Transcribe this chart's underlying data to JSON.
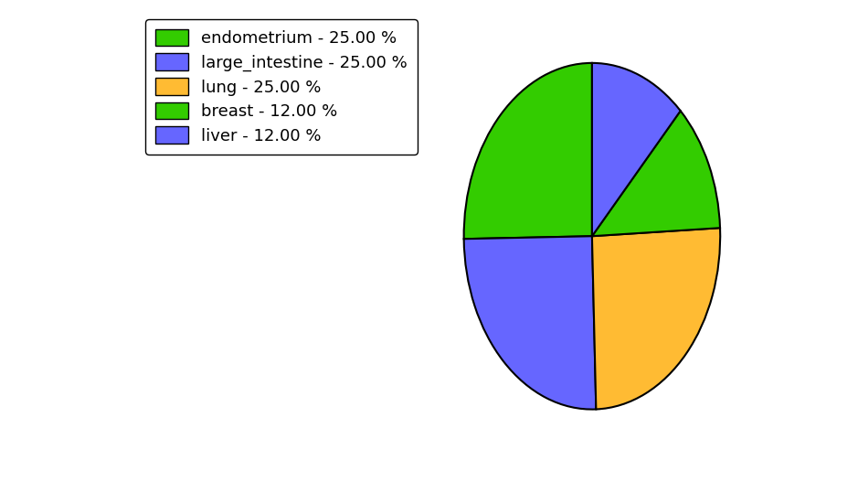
{
  "labels": [
    "endometrium",
    "large_intestine",
    "lung",
    "breast",
    "liver"
  ],
  "values": [
    25.0,
    25.0,
    25.0,
    12.0,
    12.0
  ],
  "colors": [
    "#33cc00",
    "#6666ff",
    "#ffbb33",
    "#33cc00",
    "#6666ff"
  ],
  "legend_labels": [
    "endometrium - 25.00 %",
    "large_intestine - 25.00 %",
    "lung - 25.00 %",
    "breast - 12.00 %",
    "liver - 12.00 %"
  ],
  "legend_colors": [
    "#33cc00",
    "#6666ff",
    "#ffbb33",
    "#33cc00",
    "#6666ff"
  ],
  "startangle": 90,
  "background_color": "#ffffff",
  "figsize": [
    9.39,
    5.38
  ],
  "dpi": 100
}
